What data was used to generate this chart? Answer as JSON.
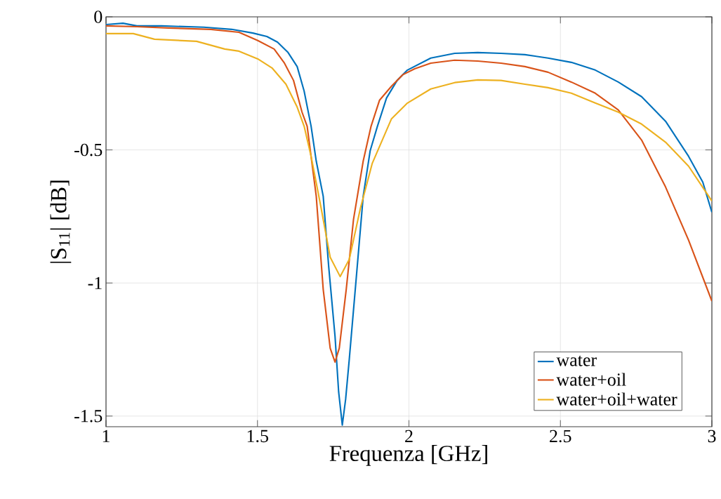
{
  "chart_data": {
    "type": "line",
    "xlabel": "Frequenza [GHz]",
    "ylabel": "|S$_{11}$| [dB]",
    "xlim": [
      1,
      3
    ],
    "ylim": [
      -1.54,
      0
    ],
    "xticks": [
      1,
      1.5,
      2,
      2.5,
      3
    ],
    "yticks": [
      -1.5,
      -1,
      -0.5,
      0
    ],
    "grid": true,
    "legend": "bottom right",
    "marker": "none",
    "line_style": "solid",
    "series": [
      {
        "name": "water",
        "color": "#0072bd",
        "x": [
          1.0,
          1.056,
          1.102,
          1.183,
          1.323,
          1.415,
          1.485,
          1.531,
          1.566,
          1.601,
          1.631,
          1.654,
          1.677,
          1.694,
          1.717,
          1.735,
          1.756,
          1.768,
          1.78,
          1.791,
          1.803,
          1.826,
          1.849,
          1.872,
          1.896,
          1.926,
          1.961,
          1.995,
          2.072,
          2.151,
          2.227,
          2.304,
          2.383,
          2.459,
          2.536,
          2.615,
          2.691,
          2.768,
          2.847,
          2.923,
          2.97,
          3.0
        ],
        "values": [
          -0.029,
          -0.024,
          -0.034,
          -0.034,
          -0.039,
          -0.047,
          -0.061,
          -0.074,
          -0.095,
          -0.134,
          -0.187,
          -0.279,
          -0.411,
          -0.542,
          -0.674,
          -0.937,
          -1.2,
          -1.41,
          -1.534,
          -1.437,
          -1.287,
          -0.982,
          -0.674,
          -0.503,
          -0.411,
          -0.305,
          -0.239,
          -0.2,
          -0.155,
          -0.137,
          -0.134,
          -0.137,
          -0.142,
          -0.155,
          -0.171,
          -0.2,
          -0.245,
          -0.3,
          -0.392,
          -0.524,
          -0.621,
          -0.734
        ]
      },
      {
        "name": "water+oil",
        "color": "#d95319",
        "x": [
          1.0,
          1.102,
          1.206,
          1.346,
          1.439,
          1.501,
          1.555,
          1.589,
          1.619,
          1.647,
          1.664,
          1.694,
          1.717,
          1.74,
          1.756,
          1.77,
          1.793,
          1.817,
          1.849,
          1.875,
          1.903,
          1.942,
          1.979,
          2.019,
          2.072,
          2.151,
          2.227,
          2.304,
          2.383,
          2.459,
          2.536,
          2.615,
          2.691,
          2.768,
          2.847,
          2.923,
          3.0
        ],
        "values": [
          -0.034,
          -0.037,
          -0.042,
          -0.047,
          -0.058,
          -0.089,
          -0.121,
          -0.174,
          -0.239,
          -0.358,
          -0.411,
          -0.674,
          -1.024,
          -1.245,
          -1.297,
          -1.245,
          -1.024,
          -0.761,
          -0.542,
          -0.411,
          -0.313,
          -0.261,
          -0.218,
          -0.195,
          -0.174,
          -0.163,
          -0.166,
          -0.174,
          -0.187,
          -0.208,
          -0.245,
          -0.287,
          -0.35,
          -0.463,
          -0.639,
          -0.839,
          -1.068
        ]
      },
      {
        "name": "water+oil+water",
        "color": "#edb120",
        "x": [
          1.0,
          1.09,
          1.16,
          1.299,
          1.392,
          1.439,
          1.501,
          1.548,
          1.594,
          1.631,
          1.654,
          1.677,
          1.71,
          1.74,
          1.773,
          1.803,
          1.84,
          1.879,
          1.942,
          1.995,
          2.072,
          2.151,
          2.227,
          2.304,
          2.383,
          2.459,
          2.536,
          2.615,
          2.691,
          2.768,
          2.847,
          2.923,
          3.0
        ],
        "values": [
          -0.063,
          -0.063,
          -0.084,
          -0.092,
          -0.121,
          -0.129,
          -0.158,
          -0.192,
          -0.253,
          -0.339,
          -0.411,
          -0.524,
          -0.718,
          -0.903,
          -0.976,
          -0.911,
          -0.718,
          -0.55,
          -0.384,
          -0.324,
          -0.271,
          -0.247,
          -0.237,
          -0.239,
          -0.253,
          -0.266,
          -0.287,
          -0.324,
          -0.358,
          -0.403,
          -0.471,
          -0.561,
          -0.692
        ]
      }
    ]
  }
}
